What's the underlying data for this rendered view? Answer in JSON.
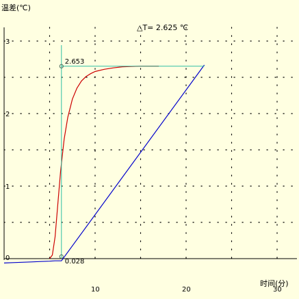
{
  "chart_data": {
    "type": "line",
    "ylabel": "温差(℃)",
    "xlabel": "时间(分)",
    "annotation": "△T= 2.625 ℃",
    "xlim": [
      0,
      32
    ],
    "ylim": [
      0,
      3
    ],
    "x_ticks": [
      10,
      20,
      30
    ],
    "y_ticks": [
      0,
      1,
      2,
      3
    ],
    "x_tick_labels": [
      "10",
      "20",
      "30"
    ],
    "y_tick_labels": [
      "0",
      "1",
      "2",
      "3"
    ],
    "grid": "dotted",
    "series": [
      {
        "color": "#0000cc",
        "x": [
          0,
          1,
          2,
          3,
          4,
          5,
          5.6,
          6.3,
          22
        ],
        "y": [
          -0.06,
          -0.055,
          -0.05,
          -0.045,
          -0.04,
          -0.035,
          -0.03,
          -0.03,
          2.67
        ]
      },
      {
        "color": "#cc0000",
        "x": [
          5.0,
          5.3,
          5.6,
          5.9,
          6.2,
          6.6,
          7.0,
          7.5,
          8.0,
          8.5,
          9.0,
          9.5,
          10.0,
          11.0,
          12.0,
          13.0,
          14.0,
          15.0,
          16.0,
          17.0
        ],
        "y": [
          0.0,
          0.05,
          0.3,
          0.75,
          1.2,
          1.65,
          1.95,
          2.2,
          2.35,
          2.45,
          2.51,
          2.55,
          2.58,
          2.61,
          2.63,
          2.645,
          2.65,
          2.655,
          2.655,
          2.655
        ]
      }
    ],
    "markers": [
      {
        "x": 6.3,
        "y": 2.653,
        "label": "2.653"
      },
      {
        "x": 6.3,
        "y": 0.028,
        "label": "0.028"
      }
    ],
    "crosshair_color": "#2fbfa4"
  }
}
